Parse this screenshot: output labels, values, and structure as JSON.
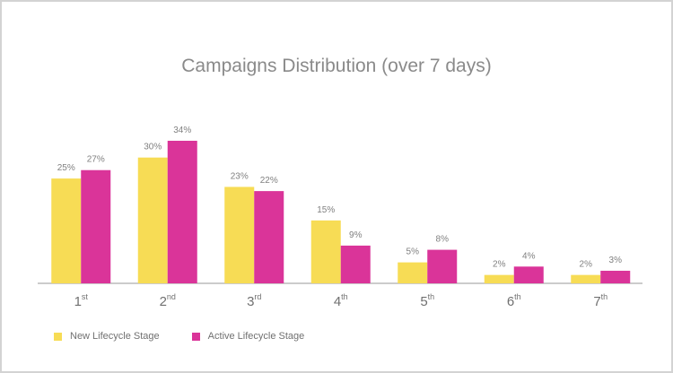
{
  "chart_data": {
    "type": "bar",
    "title": "Campaigns Distribution (over 7 days)",
    "categories": [
      {
        "num": "1",
        "suffix": "st"
      },
      {
        "num": "2",
        "suffix": "nd"
      },
      {
        "num": "3",
        "suffix": "rd"
      },
      {
        "num": "4",
        "suffix": "th"
      },
      {
        "num": "5",
        "suffix": "th"
      },
      {
        "num": "6",
        "suffix": "th"
      },
      {
        "num": "7",
        "suffix": "th"
      }
    ],
    "series": [
      {
        "name": "New Lifecycle Stage",
        "color": "#f7dc55",
        "values": [
          25,
          30,
          23,
          15,
          5,
          2,
          2
        ],
        "labels": [
          "25%",
          "30%",
          "23%",
          "15%",
          "5%",
          "2%",
          "2%"
        ]
      },
      {
        "name": "Active Lifecycle Stage",
        "color": "#da3499",
        "values": [
          27,
          34,
          22,
          9,
          8,
          4,
          3
        ],
        "labels": [
          "27%",
          "34%",
          "22%",
          "9%",
          "8%",
          "4%",
          "3%"
        ]
      }
    ],
    "ylim": [
      0,
      34
    ],
    "grid": false,
    "legend": "bottom-left"
  }
}
